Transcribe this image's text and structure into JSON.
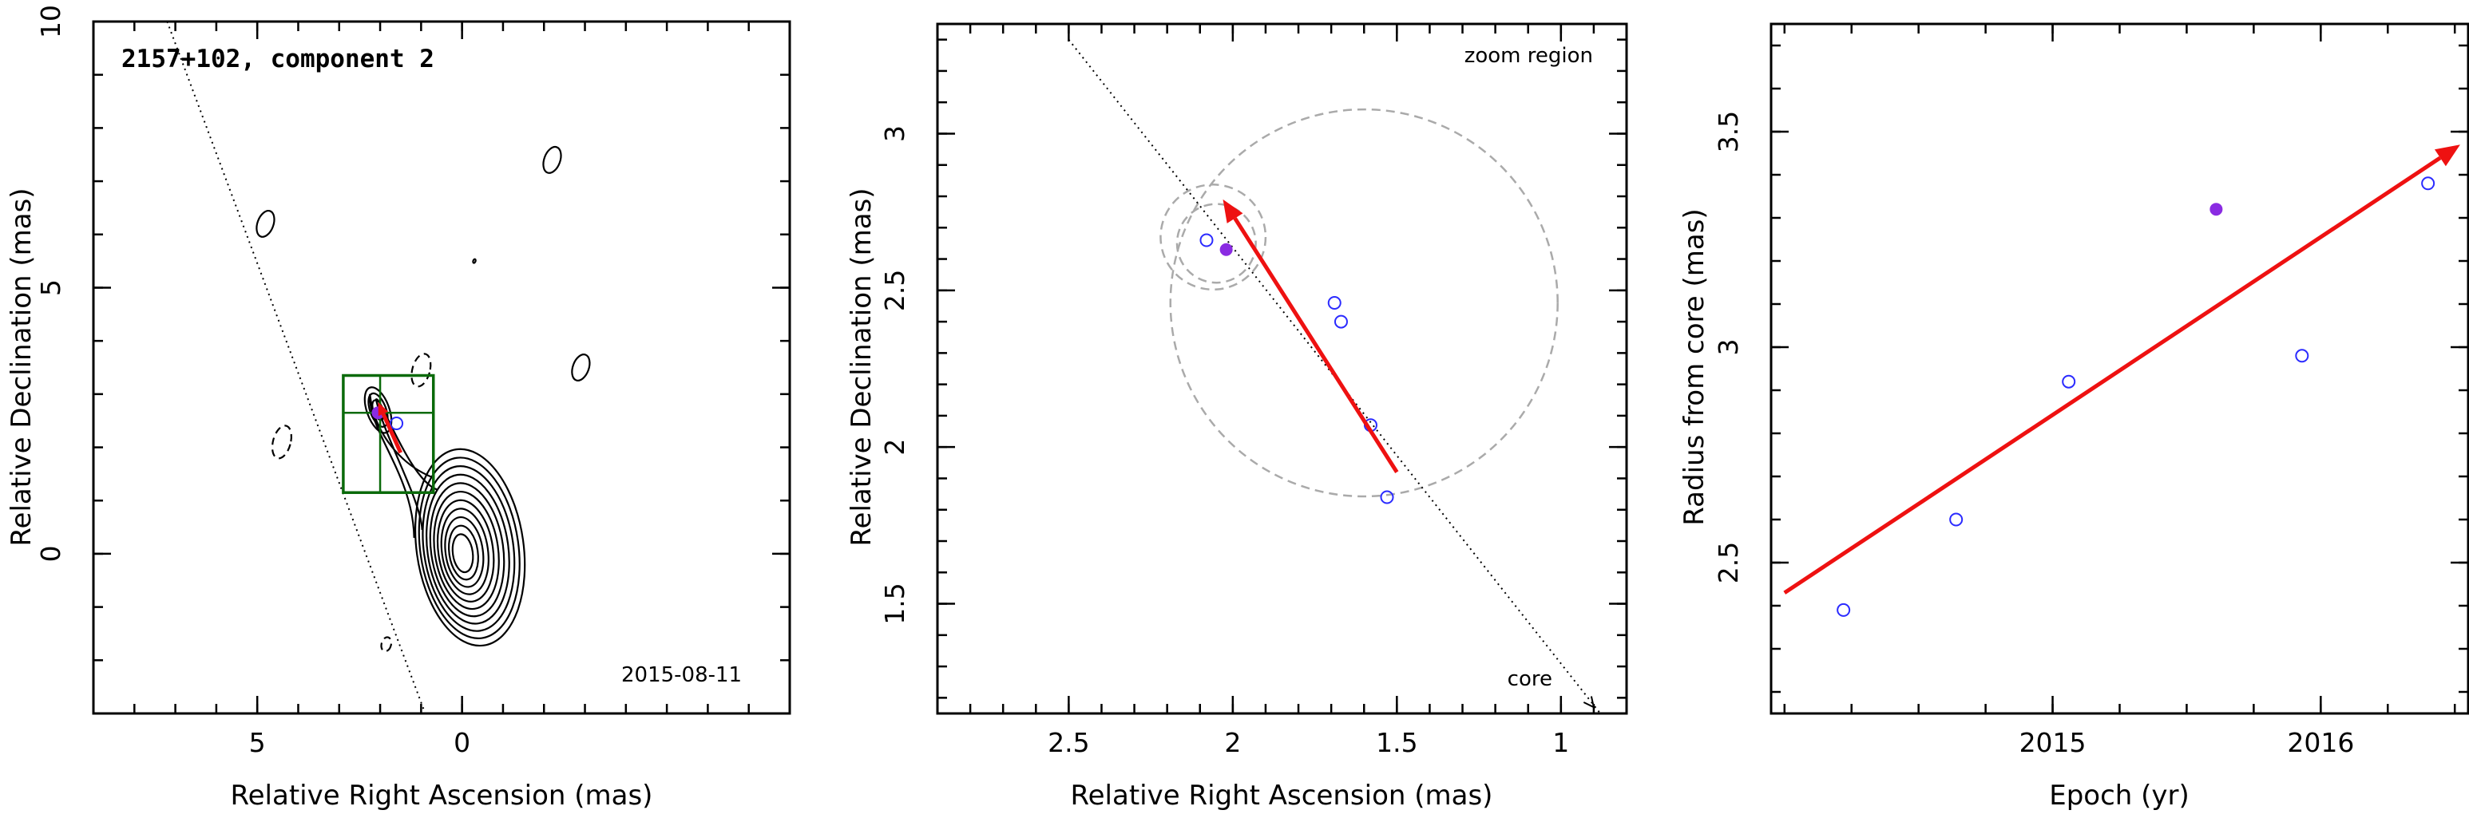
{
  "colors": {
    "arrow": "#ee1111",
    "component_box": "#0a6a0a",
    "open_point": "#2b2bff",
    "filled_point": "#8a2be2",
    "zoom_circle": "#aaaaaa",
    "axes": "#000000"
  },
  "chart_data": [
    {
      "type": "contour",
      "title": "2157+102, component 2",
      "annotation": "2015-08-11",
      "xlabel": "Relative Right Ascension (mas)",
      "ylabel": "Relative Declination (mas)",
      "xlim": [
        9,
        -8
      ],
      "ylim": [
        -3,
        10
      ],
      "xticks": [
        5,
        0
      ],
      "yticks": [
        0,
        5,
        10
      ],
      "grid": false,
      "core_position": [
        0,
        0
      ],
      "jet_direction_line": [
        [
          7.2,
          10
        ],
        [
          0.9,
          -3
        ]
      ],
      "component_box": {
        "x_range": [
          0.7,
          2.9
        ],
        "y_range": [
          1.15,
          3.35
        ],
        "cross": [
          2.0,
          2.65
        ]
      },
      "motion_arrow": {
        "from": [
          1.5,
          1.9
        ],
        "to": [
          2.05,
          2.85
        ]
      },
      "component_points": [
        {
          "ra": 2.05,
          "dec": 2.65,
          "filled": true
        },
        {
          "ra": 1.6,
          "dec": 2.45,
          "filled": false
        }
      ],
      "positive_contour_levels": 11,
      "negative_contours": [
        [
          4.4,
          2.1
        ],
        [
          1.0,
          3.45
        ],
        [
          1.85,
          -1.7
        ]
      ],
      "weak_positive_blobs": [
        [
          4.8,
          6.2
        ],
        [
          -2.2,
          7.4
        ],
        [
          -2.9,
          3.5
        ],
        [
          -0.3,
          5.5
        ]
      ]
    },
    {
      "type": "scatter",
      "annotations": [
        "zoom region",
        "core"
      ],
      "xlabel": "Relative Right Ascension (mas)",
      "ylabel": "Relative Declination (mas)",
      "xlim": [
        2.9,
        0.8
      ],
      "ylim": [
        1.15,
        3.35
      ],
      "xticks": [
        2.5,
        2,
        1.5,
        1
      ],
      "yticks": [
        1.5,
        2,
        2.5,
        3
      ],
      "grid": false,
      "points": [
        {
          "ra": 2.08,
          "dec": 2.66,
          "filled": false
        },
        {
          "ra": 2.02,
          "dec": 2.63,
          "filled": true
        },
        {
          "ra": 1.69,
          "dec": 2.46,
          "filled": false
        },
        {
          "ra": 1.67,
          "dec": 2.4,
          "filled": false
        },
        {
          "ra": 1.58,
          "dec": 2.07,
          "filled": false
        },
        {
          "ra": 1.53,
          "dec": 1.84,
          "filled": false
        }
      ],
      "jet_direction_line": [
        [
          2.5,
          3.3
        ],
        [
          0.88,
          1.15
        ]
      ],
      "motion_arrow": {
        "from": [
          1.5,
          1.92
        ],
        "to": [
          2.03,
          2.79
        ]
      },
      "error_circles": [
        {
          "ra": 2.05,
          "dec": 2.65,
          "radius": 0.12
        },
        {
          "ra": 2.06,
          "dec": 2.67,
          "radius": 0.16
        },
        {
          "ra": 1.6,
          "dec": 2.46,
          "radius": 0.59
        }
      ]
    },
    {
      "type": "scatter",
      "xlabel": "Epoch (yr)",
      "ylabel": "Radius from core (mas)",
      "xlim": [
        2013.95,
        2016.55
      ],
      "ylim": [
        2.15,
        3.75
      ],
      "xticks": [
        2015,
        2016
      ],
      "yticks": [
        2.5,
        3,
        3.5
      ],
      "grid": false,
      "points": [
        {
          "epoch": 2014.22,
          "radius": 2.39,
          "filled": false
        },
        {
          "epoch": 2014.64,
          "radius": 2.6,
          "filled": false
        },
        {
          "epoch": 2015.06,
          "radius": 2.92,
          "filled": false
        },
        {
          "epoch": 2015.61,
          "radius": 3.32,
          "filled": true
        },
        {
          "epoch": 2015.93,
          "radius": 2.98,
          "filled": false
        },
        {
          "epoch": 2016.4,
          "radius": 3.38,
          "filled": false
        }
      ],
      "fit_arrow": {
        "from": [
          2014.0,
          2.43
        ],
        "to": [
          2016.52,
          3.47
        ]
      }
    }
  ]
}
